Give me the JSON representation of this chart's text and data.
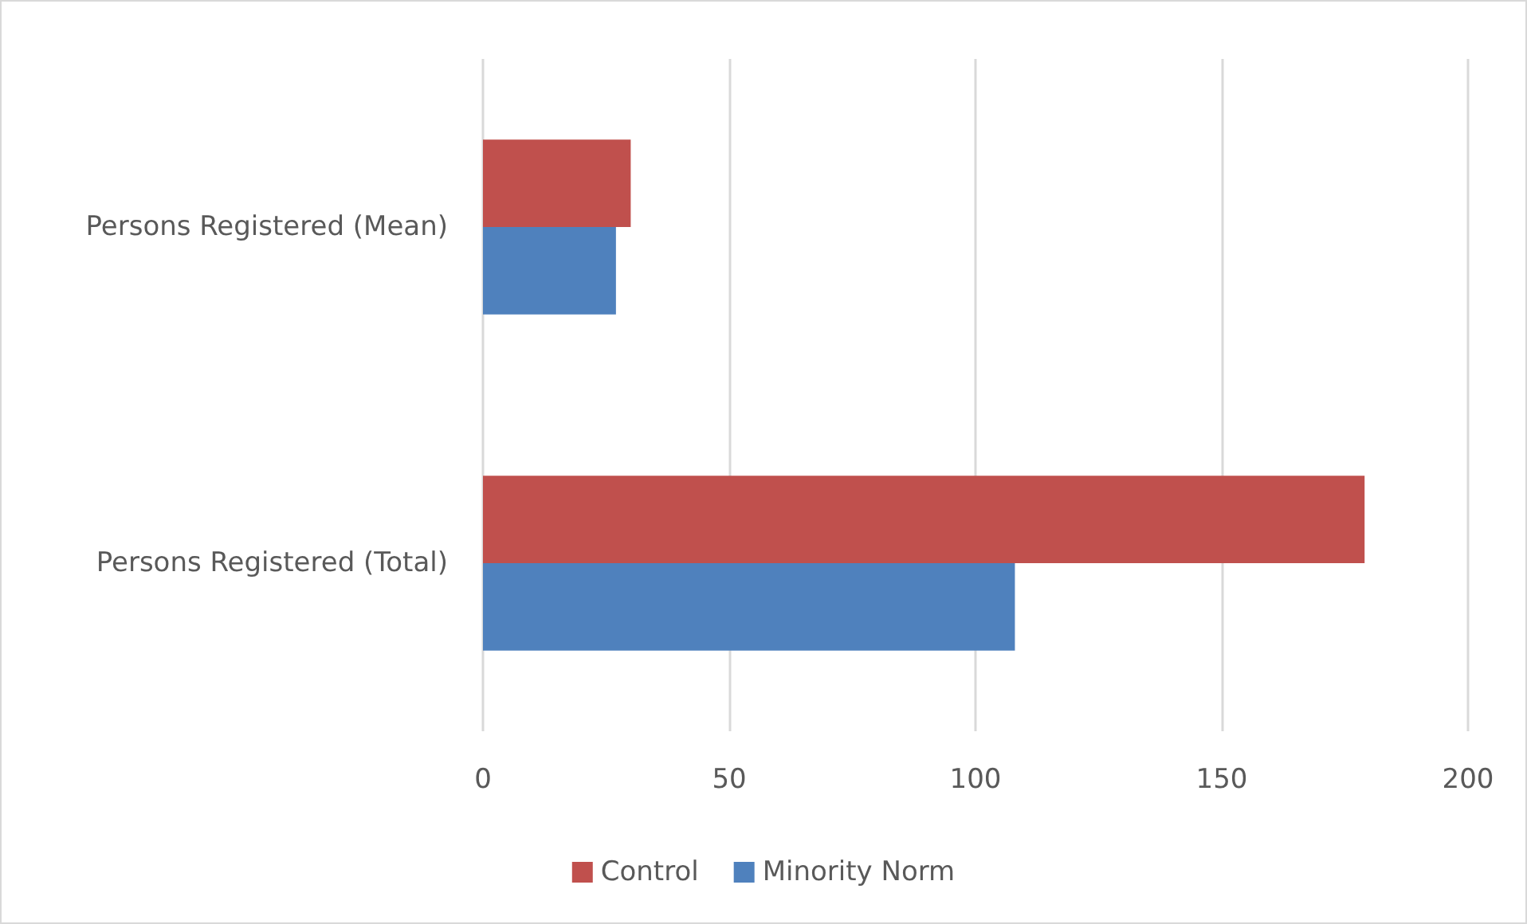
{
  "chart_data": {
    "type": "bar",
    "orientation": "horizontal",
    "categories": [
      "Persons Registered (Mean)",
      "Persons Registered (Total)"
    ],
    "series": [
      {
        "name": "Control",
        "color": "#c0504d",
        "values": [
          30,
          179
        ]
      },
      {
        "name": "Minority Norm",
        "color": "#4f81bd",
        "values": [
          27,
          108
        ]
      }
    ],
    "xlim": [
      0,
      200
    ],
    "xticks": [
      0,
      50,
      100,
      150,
      200
    ],
    "grid": "x",
    "legend": "bottom"
  }
}
